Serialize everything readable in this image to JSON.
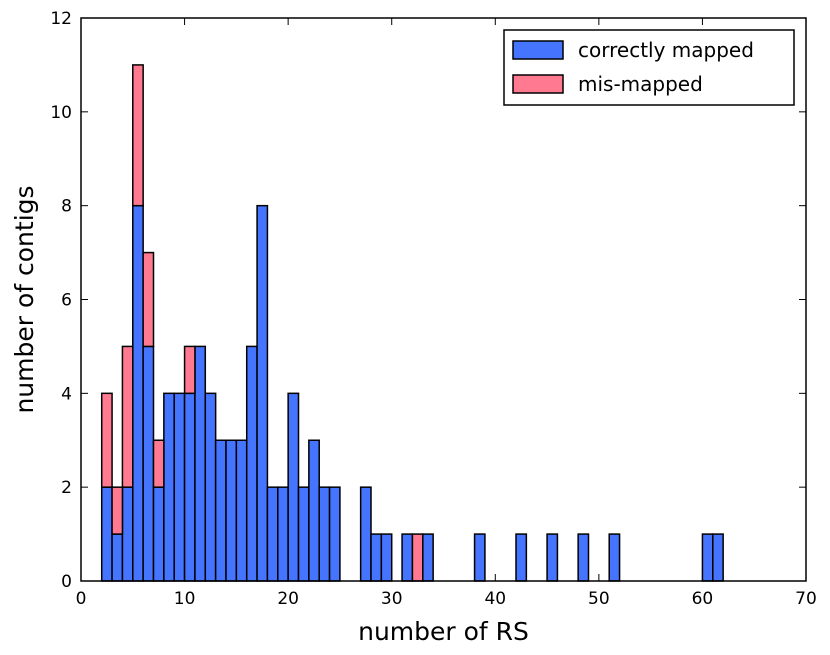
{
  "chart_data": {
    "type": "bar",
    "stacked": true,
    "bin_width": 1,
    "xlabel": "number of RS",
    "ylabel": "number of contigs",
    "xlim": [
      0,
      70
    ],
    "ylim": [
      0,
      12
    ],
    "xticks": [
      "0",
      "10",
      "20",
      "30",
      "40",
      "50",
      "60",
      "70"
    ],
    "yticks": [
      "0",
      "2",
      "4",
      "6",
      "8",
      "10",
      "12"
    ],
    "grid": false,
    "legend_position": "top-right",
    "series": [
      {
        "name": "correctly mapped",
        "color": "#4575FF",
        "bins": [
          {
            "x": 2,
            "value": 2
          },
          {
            "x": 3,
            "value": 1
          },
          {
            "x": 4,
            "value": 2
          },
          {
            "x": 5,
            "value": 8
          },
          {
            "x": 6,
            "value": 5
          },
          {
            "x": 7,
            "value": 2
          },
          {
            "x": 8,
            "value": 4
          },
          {
            "x": 9,
            "value": 4
          },
          {
            "x": 10,
            "value": 4
          },
          {
            "x": 11,
            "value": 5
          },
          {
            "x": 12,
            "value": 4
          },
          {
            "x": 13,
            "value": 3
          },
          {
            "x": 14,
            "value": 3
          },
          {
            "x": 15,
            "value": 3
          },
          {
            "x": 16,
            "value": 5
          },
          {
            "x": 17,
            "value": 8
          },
          {
            "x": 18,
            "value": 2
          },
          {
            "x": 19,
            "value": 2
          },
          {
            "x": 20,
            "value": 4
          },
          {
            "x": 21,
            "value": 2
          },
          {
            "x": 22,
            "value": 3
          },
          {
            "x": 23,
            "value": 2
          },
          {
            "x": 24,
            "value": 2
          },
          {
            "x": 27,
            "value": 2
          },
          {
            "x": 28,
            "value": 1
          },
          {
            "x": 29,
            "value": 1
          },
          {
            "x": 31,
            "value": 1
          },
          {
            "x": 33,
            "value": 1
          },
          {
            "x": 38,
            "value": 1
          },
          {
            "x": 42,
            "value": 1
          },
          {
            "x": 45,
            "value": 1
          },
          {
            "x": 48,
            "value": 1
          },
          {
            "x": 51,
            "value": 1
          },
          {
            "x": 60,
            "value": 1
          },
          {
            "x": 61,
            "value": 1
          }
        ]
      },
      {
        "name": "mis-mapped",
        "color": "#FF7A90",
        "bins": [
          {
            "x": 2,
            "value": 2,
            "base": 2
          },
          {
            "x": 3,
            "value": 1,
            "base": 1
          },
          {
            "x": 4,
            "value": 3,
            "base": 2
          },
          {
            "x": 5,
            "value": 3,
            "base": 8
          },
          {
            "x": 6,
            "value": 2,
            "base": 5
          },
          {
            "x": 7,
            "value": 1,
            "base": 2
          },
          {
            "x": 10,
            "value": 1,
            "base": 4
          },
          {
            "x": 32,
            "value": 1,
            "base": 0
          }
        ]
      }
    ]
  }
}
